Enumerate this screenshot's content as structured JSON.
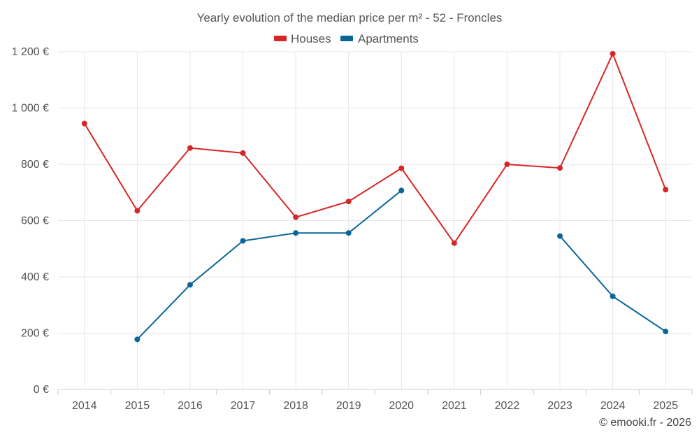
{
  "chart_data": {
    "type": "line",
    "title": "Yearly evolution of the median price per m² - 52 - Froncles",
    "categories": [
      "2014",
      "2015",
      "2016",
      "2017",
      "2018",
      "2019",
      "2020",
      "2021",
      "2022",
      "2023",
      "2024",
      "2025"
    ],
    "series": [
      {
        "name": "Houses",
        "color": "#d62728",
        "values": [
          945,
          635,
          858,
          840,
          612,
          668,
          786,
          520,
          800,
          787,
          1193,
          710
        ]
      },
      {
        "name": "Apartments",
        "color": "#0a6699",
        "values": [
          null,
          178,
          372,
          528,
          556,
          556,
          707,
          null,
          null,
          545,
          331,
          206
        ]
      }
    ],
    "ylim": [
      0,
      1200
    ],
    "yticks": [
      0,
      200,
      400,
      600,
      800,
      1000,
      1200
    ],
    "ytick_labels": [
      "0 €",
      "200 €",
      "400 €",
      "600 €",
      "800 €",
      "1 000 €",
      "1 200 €"
    ],
    "xlabel": "",
    "ylabel": "",
    "legend_position": "top-center",
    "grid": true
  },
  "credit": "© emooki.fr - 2026"
}
